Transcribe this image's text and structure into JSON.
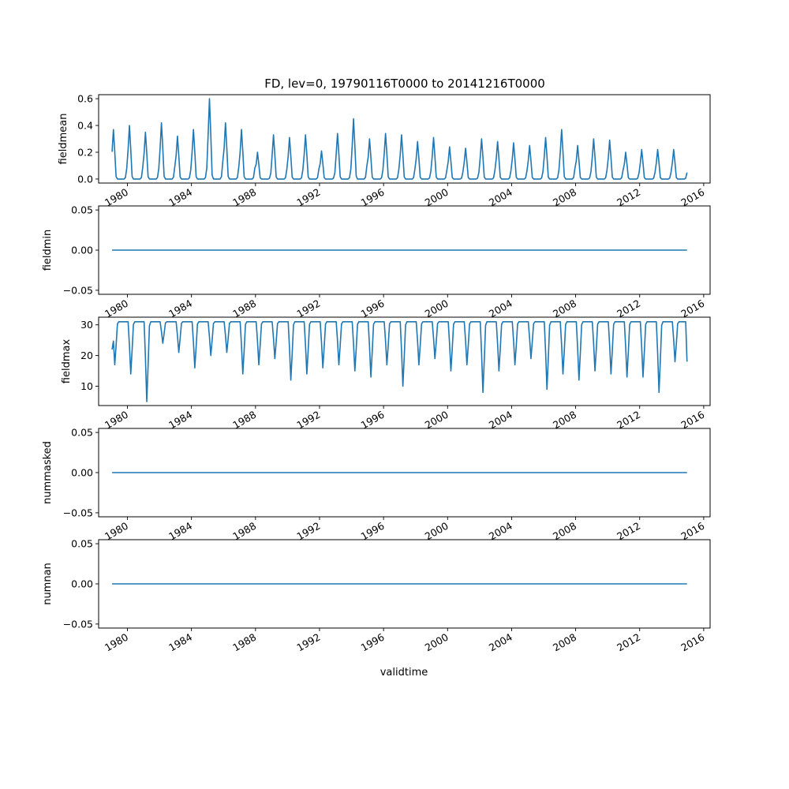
{
  "chart_data": {
    "type": "line",
    "title": "FD, lev=0, 19790116T0000 to 20141216T0000",
    "xlabel": "validtime",
    "x_start": "1979-01-16",
    "x_end": "2014-12-16",
    "xlim": [
      1978.2,
      2016.4
    ],
    "x_ticks": [
      1980,
      1984,
      1988,
      1992,
      1996,
      2000,
      2004,
      2008,
      2012,
      2016
    ],
    "x_tick_labels": [
      "1980",
      "1984",
      "1988",
      "1992",
      "1996",
      "2000",
      "2004",
      "2008",
      "2012",
      "2016"
    ],
    "line_color": "#1f77b4",
    "panels": [
      {
        "ylabel": "fieldmean",
        "ylim": [
          -0.03,
          0.63
        ],
        "y_ticks": [
          0.0,
          0.2,
          0.4,
          0.6
        ],
        "y_tick_labels": [
          "0.0",
          "0.2",
          "0.4",
          "0.6"
        ],
        "annual_peaks": [
          0.37,
          0.4,
          0.35,
          0.42,
          0.32,
          0.37,
          0.6,
          0.42,
          0.37,
          0.2,
          0.33,
          0.31,
          0.33,
          0.21,
          0.34,
          0.45,
          0.3,
          0.34,
          0.33,
          0.28,
          0.31,
          0.24,
          0.23,
          0.3,
          0.28,
          0.27,
          0.25,
          0.31,
          0.37,
          0.25,
          0.3,
          0.29,
          0.2,
          0.22,
          0.22,
          0.22
        ],
        "summer_value": 0.0
      },
      {
        "ylabel": "fieldmin",
        "ylim": [
          -0.055,
          0.055
        ],
        "y_ticks": [
          -0.05,
          0.0,
          0.05
        ],
        "y_tick_labels": [
          "−0.05",
          "0.00",
          "0.05"
        ],
        "constant_value": 0.0
      },
      {
        "ylabel": "fieldmax",
        "ylim": [
          3.7,
          32.5
        ],
        "y_ticks": [
          10,
          20,
          30
        ],
        "y_tick_labels": [
          "10",
          "20",
          "30"
        ],
        "winter_value": 31,
        "annual_minima": [
          17,
          14,
          5,
          24,
          21,
          16,
          20,
          21,
          14,
          17,
          19,
          12,
          14,
          16,
          17,
          15,
          13,
          17,
          10,
          17,
          19,
          15,
          17,
          8,
          15,
          17,
          19,
          9,
          14,
          12,
          15,
          14,
          13,
          13,
          8,
          18
        ]
      },
      {
        "ylabel": "nummasked",
        "ylim": [
          -0.055,
          0.055
        ],
        "y_ticks": [
          -0.05,
          0.0,
          0.05
        ],
        "y_tick_labels": [
          "−0.05",
          "0.00",
          "0.05"
        ],
        "constant_value": 0.0
      },
      {
        "ylabel": "numnan",
        "ylim": [
          -0.055,
          0.055
        ],
        "y_ticks": [
          -0.05,
          0.0,
          0.05
        ],
        "y_tick_labels": [
          "−0.05",
          "0.00",
          "0.05"
        ],
        "constant_value": 0.0
      }
    ]
  }
}
